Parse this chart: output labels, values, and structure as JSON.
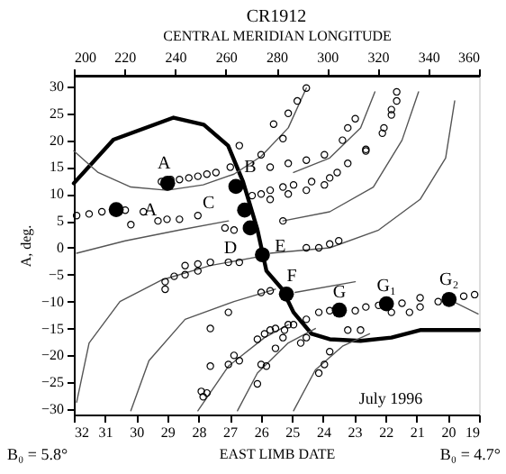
{
  "chart_data": {
    "type": "scatter",
    "title": "CR1912",
    "x2label": "CENTRAL MERIDIAN LONGITUDE",
    "xlabel": "EAST LIMB DATE",
    "ylabel": "A, deg.",
    "xlim": [
      32,
      19
    ],
    "xticks": [
      32,
      31,
      30,
      29,
      28,
      27,
      26,
      25,
      24,
      23,
      22,
      21,
      20,
      19
    ],
    "x2lim": [
      200,
      360
    ],
    "x2ticks": [
      200,
      220,
      240,
      260,
      280,
      300,
      320,
      340,
      360
    ],
    "ylim": [
      -31,
      32
    ],
    "yticks": [
      -30,
      -25,
      -20,
      -15,
      -10,
      -5,
      0,
      5,
      10,
      15,
      20,
      25,
      30
    ],
    "series": [
      {
        "type": "line",
        "color": "#000000",
        "x": [
          32.0,
          30.73,
          28.8,
          27.83,
          27.05,
          26.57,
          26.11,
          25.82,
          25.31,
          24.95,
          24.37,
          23.79,
          22.8,
          21.81,
          20.89,
          19.0
        ],
        "values": [
          12.0,
          20.1,
          24.2,
          22.9,
          19.0,
          12.3,
          3.4,
          -4.3,
          -7.7,
          -12.0,
          -16.0,
          -17.0,
          -17.3,
          -16.7,
          -15.3,
          -15.3
        ]
      },
      {
        "type": "line",
        "color": "#555555",
        "x": [
          32.0,
          31.22,
          30.17,
          29.01,
          27.85,
          26.86,
          25.99,
          25.12,
          24.54
        ],
        "values": [
          18.0,
          14.0,
          11.3,
          10.7,
          11.7,
          13.7,
          17.0,
          22.3,
          29.7
        ]
      },
      {
        "type": "line",
        "color": "#555555",
        "x": [
          24.95,
          23.79,
          22.8,
          22.34
        ],
        "values": [
          14.0,
          16.7,
          22.3,
          29.0
        ]
      },
      {
        "type": "line",
        "color": "#555555",
        "x": [
          25.29,
          23.79,
          22.39,
          21.47,
          20.94
        ],
        "values": [
          5.0,
          6.7,
          11.3,
          20.0,
          29.0
        ]
      },
      {
        "type": "line",
        "color": "#555555",
        "x": [
          25.7,
          23.79,
          22.22,
          20.89,
          20.07,
          19.78
        ],
        "values": [
          -1.0,
          0,
          3.3,
          9.0,
          16.7,
          27.3
        ]
      },
      {
        "type": "line",
        "color": "#555555",
        "x": [
          31.91,
          31.51,
          30.52,
          29.19,
          27.62,
          26.11
        ],
        "values": [
          -28.7,
          -17.7,
          -10.0,
          -6.0,
          -3.3,
          -1.7
        ]
      },
      {
        "type": "line",
        "color": "#555555",
        "x": [
          30.17,
          29.59,
          28.43,
          26.86,
          25.53
        ],
        "values": [
          -30.3,
          -21.0,
          -13.3,
          -10.0,
          -7.7
        ]
      },
      {
        "type": "line",
        "color": "#555555",
        "x": [
          28.02,
          27.04,
          25.88,
          25.12
        ],
        "values": [
          -30.3,
          -22.0,
          -16.7,
          -14.3
        ]
      },
      {
        "type": "line",
        "color": "#555555",
        "x": [
          26.75,
          26.11,
          25.12,
          24.25
        ],
        "values": [
          -30.3,
          -23.3,
          -17.7,
          -15.0
        ]
      },
      {
        "type": "line",
        "color": "#555555",
        "x": [
          24.95,
          24.25,
          23.38,
          22.51
        ],
        "values": [
          -30.3,
          -22.7,
          -18.3,
          -16.0
        ]
      },
      {
        "type": "line",
        "color": "#555555",
        "x": [
          24.9,
          22.97
        ],
        "values": [
          -8.3,
          -6.3
        ]
      },
      {
        "type": "line",
        "color": "#555555",
        "x": [
          20.07,
          19.03
        ],
        "values": [
          -9.3,
          -12.3
        ]
      },
      {
        "type": "line",
        "color": "#555555",
        "x": [
          31.91,
          30.35,
          28.61,
          27.04
        ],
        "values": [
          -1.0,
          1.3,
          3.3,
          5.0
        ]
      },
      {
        "marker": "circle",
        "color": "#000000",
        "x": [
          26.69,
          25.59,
          25.12,
          24.83,
          24.54,
          25.29,
          25.99,
          29.19,
          28.89,
          28.61,
          28.31,
          28.02,
          27.73,
          27.44,
          26.98,
          25.7,
          25.12,
          24.54,
          23.96,
          23.38,
          23.21,
          22.97,
          26.28,
          25.99,
          25.7,
          25.29,
          24.95,
          24.37,
          23.79,
          23.21,
          22.63,
          22.1,
          21.81,
          21.64,
          31.91,
          31.51,
          31.1,
          30.35,
          29.77,
          29.3,
          29.01,
          28.61,
          28.02,
          30.17,
          27.15,
          26.86,
          25.7,
          25.12,
          24.54,
          23.96,
          23.55,
          25.29,
          24.54,
          24.14,
          23.79,
          23.5,
          28.43,
          28.02,
          27.62,
          29.07,
          28.78,
          28.43,
          28.02,
          27.04,
          26.69,
          29.07,
          27.04,
          27.62,
          25.99,
          25.7,
          26.11,
          25.88,
          25.53,
          25.24,
          26.86,
          26.69,
          27.04,
          27.62,
          25.99,
          25.82,
          26.11,
          27.91,
          27.73,
          27.85,
          24.95,
          24.54,
          24.14,
          23.79,
          22.97,
          22.63,
          22.22,
          21.47,
          20.89,
          20.31,
          19.49,
          19.14,
          20.89,
          21.81,
          21.23,
          23.21,
          22.8,
          23.96,
          23.79,
          24.14,
          25.53,
          25.29,
          25.7,
          24.54,
          25.12,
          24.72,
          21.64,
          21.81,
          22.05,
          22.63
        ],
        "values": [
          19.0,
          23.0,
          25.0,
          27.3,
          29.7,
          20.3,
          17.3,
          12.3,
          12.7,
          12.7,
          13.0,
          13.3,
          13.7,
          14.0,
          15.0,
          15.0,
          15.7,
          16.3,
          17.3,
          20.0,
          22.3,
          24.0,
          9.7,
          10.0,
          10.7,
          11.3,
          11.7,
          12.3,
          13.0,
          15.7,
          18.3,
          21.3,
          24.7,
          27.3,
          6.0,
          6.3,
          6.7,
          7.0,
          6.7,
          5.0,
          5.3,
          5.3,
          6.0,
          4.3,
          3.7,
          3.3,
          9.0,
          10.0,
          10.7,
          11.7,
          14.0,
          5.0,
          0,
          0,
          0.7,
          1.3,
          -3.3,
          -3.0,
          -2.7,
          -6.3,
          -5.3,
          -5.0,
          -4.3,
          -2.7,
          -2.7,
          -7.7,
          -12.0,
          -15.0,
          -8.3,
          -8.0,
          -17.0,
          -16.0,
          -15.0,
          -15.3,
          -20.0,
          -21.0,
          -21.7,
          -22.0,
          -21.7,
          -22.0,
          -25.3,
          -26.7,
          -27.0,
          -27.7,
          -14.3,
          -13.3,
          -12.0,
          -11.7,
          -11.7,
          -11.0,
          -10.7,
          -10.3,
          -11.0,
          -10.0,
          -9.0,
          -8.7,
          -9.3,
          -12.0,
          -12.0,
          -15.3,
          -15.3,
          -21.7,
          -19.3,
          -23.3,
          -18.7,
          -16.7,
          -15.3,
          -16.7,
          -14.3,
          -17.7,
          29.0,
          25.7,
          22.3,
          18.0
        ]
      },
      {
        "marker": "circle",
        "color": "#000000",
        "x": [
          28.99,
          30.64,
          26.8,
          26.52,
          26.34,
          25.95,
          25.18,
          23.48,
          21.97,
          19.96
        ],
        "values": [
          12.0,
          7.1,
          11.4,
          7.0,
          3.7,
          -1.3,
          -8.6,
          -11.6,
          -10.4,
          -9.6
        ]
      }
    ],
    "annotations": [
      {
        "text": "A",
        "x": 28.99,
        "y": 12.0
      },
      {
        "text": "A",
        "x": 30.64,
        "y": 7.1
      },
      {
        "text": "B",
        "x": 26.8,
        "y": 11.4
      },
      {
        "text": "C",
        "x": 26.52,
        "y": 7.0
      },
      {
        "text": "D",
        "x": 26.34,
        "y": 3.7
      },
      {
        "text": "E",
        "x": 25.95,
        "y": -1.3
      },
      {
        "text": "F",
        "x": 25.18,
        "y": -8.6
      },
      {
        "text": "G",
        "x": 23.48,
        "y": -11.6
      },
      {
        "text": "G₁",
        "x": 21.97,
        "y": -10.4
      },
      {
        "text": "G₂",
        "x": 19.96,
        "y": -9.6
      },
      "July 1996",
      "B₀ = 5.8°",
      "B₀ = 4.7°"
    ]
  }
}
